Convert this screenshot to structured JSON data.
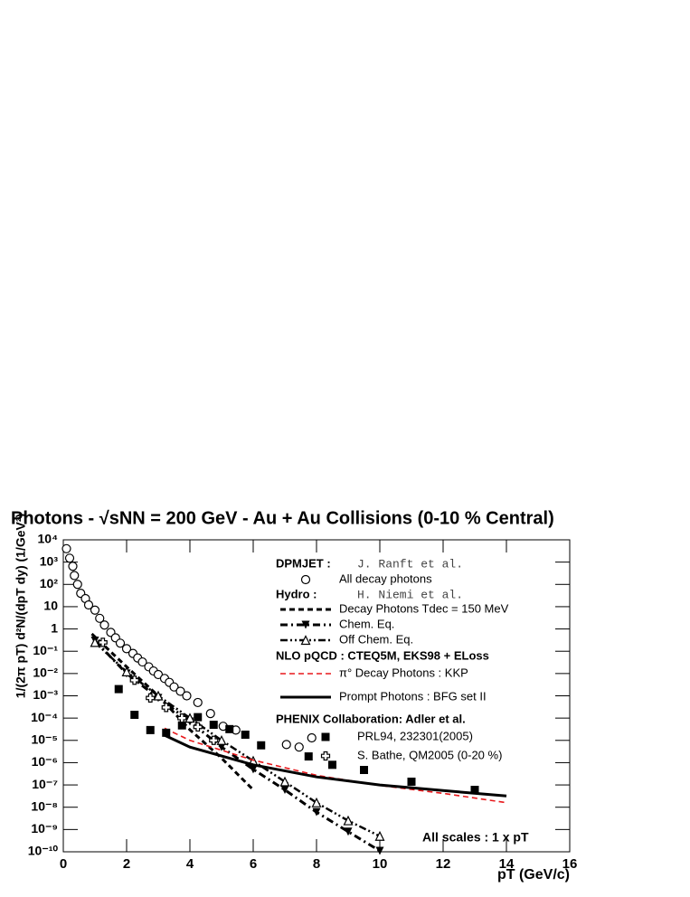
{
  "chart_data": {
    "type": "scatter",
    "title": "Photons - √sNN = 200 GeV - Au + Au Collisions (0-10 % Central)",
    "x_label": "pT (GeV/c)",
    "y_label": "1/(2π pT) d²N/(dpT dy) (1/GeV²)",
    "annotation": "All scales : 1 x pT",
    "log_y": true,
    "xlim": [
      0,
      16
    ],
    "xticks": [
      0,
      2,
      4,
      6,
      8,
      10,
      12,
      14,
      16
    ],
    "ylim": [
      1e-10,
      10000
    ],
    "yticks": [
      {
        "value": 10000,
        "label": "10⁴"
      },
      {
        "value": 1000,
        "label": "10³"
      },
      {
        "value": 100,
        "label": "10²"
      },
      10,
      1,
      {
        "value": 0.1,
        "label": "10⁻¹"
      },
      {
        "value": 0.01,
        "label": "10⁻²"
      },
      {
        "value": 0.001,
        "label": "10⁻³"
      },
      {
        "value": 0.0001,
        "label": "10⁻⁴"
      },
      {
        "value": 1e-05,
        "label": "10⁻⁵"
      },
      {
        "value": 1e-06,
        "label": "10⁻⁶"
      },
      {
        "value": 1e-07,
        "label": "10⁻⁷"
      },
      {
        "value": 1e-08,
        "label": "10⁻⁸"
      },
      {
        "value": 1e-09,
        "label": "10⁻⁹"
      },
      {
        "value": 1e-10,
        "label": "10⁻¹⁰"
      }
    ],
    "legend_groups": [
      {
        "title": "DPMJET :",
        "reference": "J. Ranft et al."
      },
      {
        "title": "Hydro :",
        "reference": "H. Niemi et al."
      },
      {
        "title": "NLO pQCD : CTEQ5M, EKS98 + ELoss"
      },
      {
        "title": "PHENIX Collaboration: Adler et al."
      }
    ],
    "series": [
      {
        "name": "All decay photons",
        "color": "#000000",
        "line": "none",
        "marker": "open-circle",
        "x": [
          0.1,
          0.2,
          0.3,
          0.35,
          0.45,
          0.55,
          0.7,
          0.8,
          1.0,
          1.15,
          1.3,
          1.5,
          1.65,
          1.8,
          2.0,
          2.2,
          2.35,
          2.5,
          2.7,
          2.85,
          3.0,
          3.2,
          3.35,
          3.5,
          3.7,
          3.9,
          4.25,
          4.65,
          5.05,
          5.45,
          7.05,
          7.45,
          7.85
        ],
        "values": [
          4000,
          1500,
          650,
          250,
          100,
          40,
          23,
          12,
          7,
          3,
          1.5,
          0.7,
          0.4,
          0.23,
          0.13,
          0.08,
          0.05,
          0.033,
          0.02,
          0.013,
          0.009,
          0.006,
          0.004,
          0.0025,
          0.0016,
          0.001,
          0.0005,
          0.00016,
          4.3e-05,
          2.9e-05,
          6.5e-06,
          5e-06,
          1.3e-05
        ]
      },
      {
        "name": "Decay Photons  Tdec = 150 MeV",
        "color": "#000000",
        "line": "dashed",
        "marker": "none",
        "x": [
          0.9,
          2,
          3,
          4,
          5,
          6
        ],
        "values": [
          0.6,
          0.02,
          0.001,
          3e-05,
          1.6e-06,
          6e-08
        ]
      },
      {
        "name": "Chem. Eq.",
        "color": "#000000",
        "line": "dashdot",
        "marker": "filled-down-triangle",
        "x": [
          1,
          2,
          3,
          4,
          5,
          6,
          7,
          8,
          9,
          10
        ],
        "values": [
          0.3,
          0.01,
          0.0008,
          7e-05,
          5e-06,
          5e-07,
          6e-08,
          6e-09,
          8e-10,
          1.1e-10
        ]
      },
      {
        "name": "Off Chem. Eq.",
        "color": "#000000",
        "line": "dashdotdot",
        "marker": "open-up-triangle",
        "x": [
          1,
          2,
          3,
          4,
          5,
          6,
          7,
          8,
          9,
          10
        ],
        "values": [
          0.25,
          0.012,
          0.001,
          0.0001,
          1e-05,
          1.2e-06,
          1.4e-07,
          1.6e-08,
          2.5e-09,
          5e-10
        ]
      },
      {
        "name": "π° Decay Photons : KKP",
        "color": "#e8191c",
        "line": "reddash",
        "marker": "none",
        "x": [
          3.2,
          4,
          6,
          8,
          10,
          12,
          14
        ],
        "values": [
          3.5e-05,
          1e-05,
          1.3e-06,
          2.7e-07,
          9.5e-08,
          4.2e-08,
          1.6e-08
        ]
      },
      {
        "name": "Prompt Photons : BFG set II",
        "color": "#000000",
        "line": "solid",
        "marker": "none",
        "x": [
          3.2,
          4,
          6,
          8,
          10,
          12,
          14
        ],
        "values": [
          1.7e-05,
          5e-06,
          8e-07,
          2.3e-07,
          1e-07,
          5.6e-08,
          3.2e-08
        ]
      },
      {
        "name": "PRL94, 232301(2005)",
        "color": "#000000",
        "line": "none",
        "marker": "filled-square",
        "x": [
          1.75,
          2.25,
          2.75,
          3.25,
          3.75,
          4.25,
          4.75,
          5.25,
          5.75,
          6.25,
          7.75,
          8.5,
          9.5,
          11,
          13
        ],
        "values": [
          0.002,
          0.00014,
          2.9e-05,
          2.2e-05,
          4.7e-05,
          0.00011,
          5e-05,
          3.2e-05,
          1.8e-05,
          6e-06,
          1.9e-06,
          8e-07,
          4.7e-07,
          1.4e-07,
          6e-08
        ]
      },
      {
        "name": "S. Bathe, QM2005 (0-20 %)",
        "color": "#000000",
        "line": "none",
        "marker": "open-cross",
        "x": [
          1.25,
          2.25,
          2.75,
          3.25,
          3.75,
          4.25,
          4.75
        ],
        "values": [
          0.25,
          0.005,
          0.0008,
          0.0003,
          0.0001,
          4e-05,
          1e-05
        ]
      }
    ]
  }
}
